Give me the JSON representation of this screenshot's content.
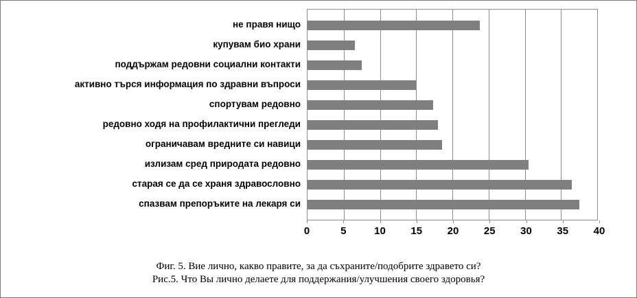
{
  "chart_data": {
    "type": "bar",
    "orientation": "horizontal",
    "title": "",
    "categories": [
      "не правя нищо",
      "купувам био храни",
      "поддържам редовни социални контакти",
      "активно търся информация по здравни въпроси",
      "спортувам редовно",
      "редовно ходя на профилактични прегледи",
      "ограничавам вредните си навици",
      "излизам сред природата редовно",
      "старая се да се храня здравословно",
      "спазвам препоръките на лекаря си"
    ],
    "values": [
      23.8,
      6.5,
      7.5,
      15,
      17.3,
      18,
      18.6,
      30.5,
      36.5,
      37.5
    ],
    "xlim": [
      0,
      40
    ],
    "xticks": [
      0,
      5,
      10,
      15,
      20,
      25,
      30,
      35,
      40
    ],
    "grid": true,
    "legend": false,
    "bar_color": "#7f7f7f",
    "gridline_color": "#8c8c8c",
    "plot_border_color": "#8c8c8c"
  },
  "caption": {
    "line1": "Фиг. 5. Вие лично, какво правите, за да съхраните/подобрите здравето си?",
    "line2": "Рис.5. Что Вы лично делаете для поддержания/улучшения своего здоровья?"
  }
}
